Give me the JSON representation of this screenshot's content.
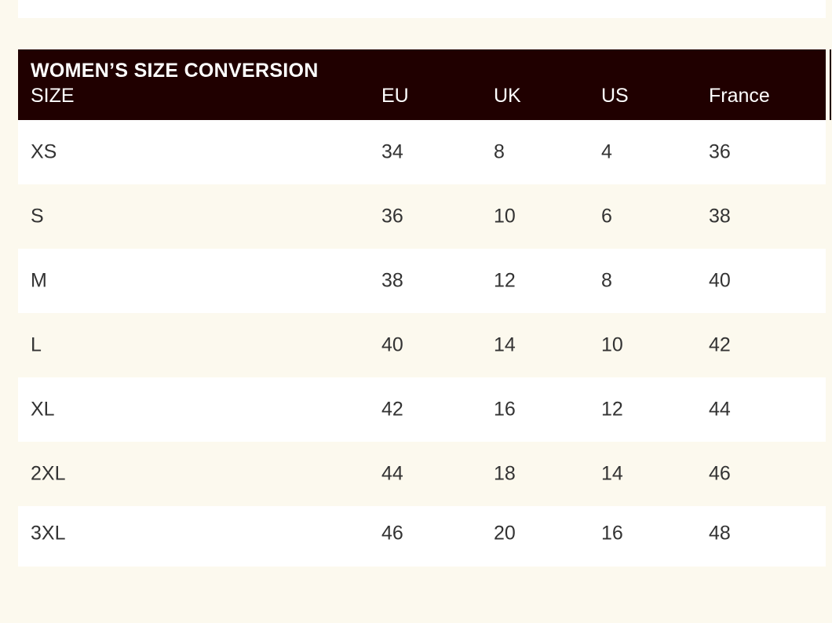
{
  "table": {
    "title": "WOMEN’S SIZE CONVERSION",
    "columns": [
      "SIZE",
      "EU",
      "UK",
      "US",
      "France"
    ],
    "rows": [
      [
        "XS",
        "34",
        "8",
        "4",
        "36"
      ],
      [
        "S",
        "36",
        "10",
        "6",
        "38"
      ],
      [
        "M",
        "38",
        "12",
        "8",
        "40"
      ],
      [
        "L",
        "40",
        "14",
        "10",
        "42"
      ],
      [
        "XL",
        "42",
        "16",
        "12",
        "44"
      ],
      [
        "2XL",
        "44",
        "18",
        "14",
        "46"
      ],
      [
        "3XL",
        "46",
        "20",
        "16",
        "48"
      ]
    ]
  },
  "colors": {
    "header_background": "#200000",
    "header_text": "#ffffff",
    "page_background": "#fcf9ee",
    "row_alt": "#ffffff",
    "body_text": "#333333"
  }
}
